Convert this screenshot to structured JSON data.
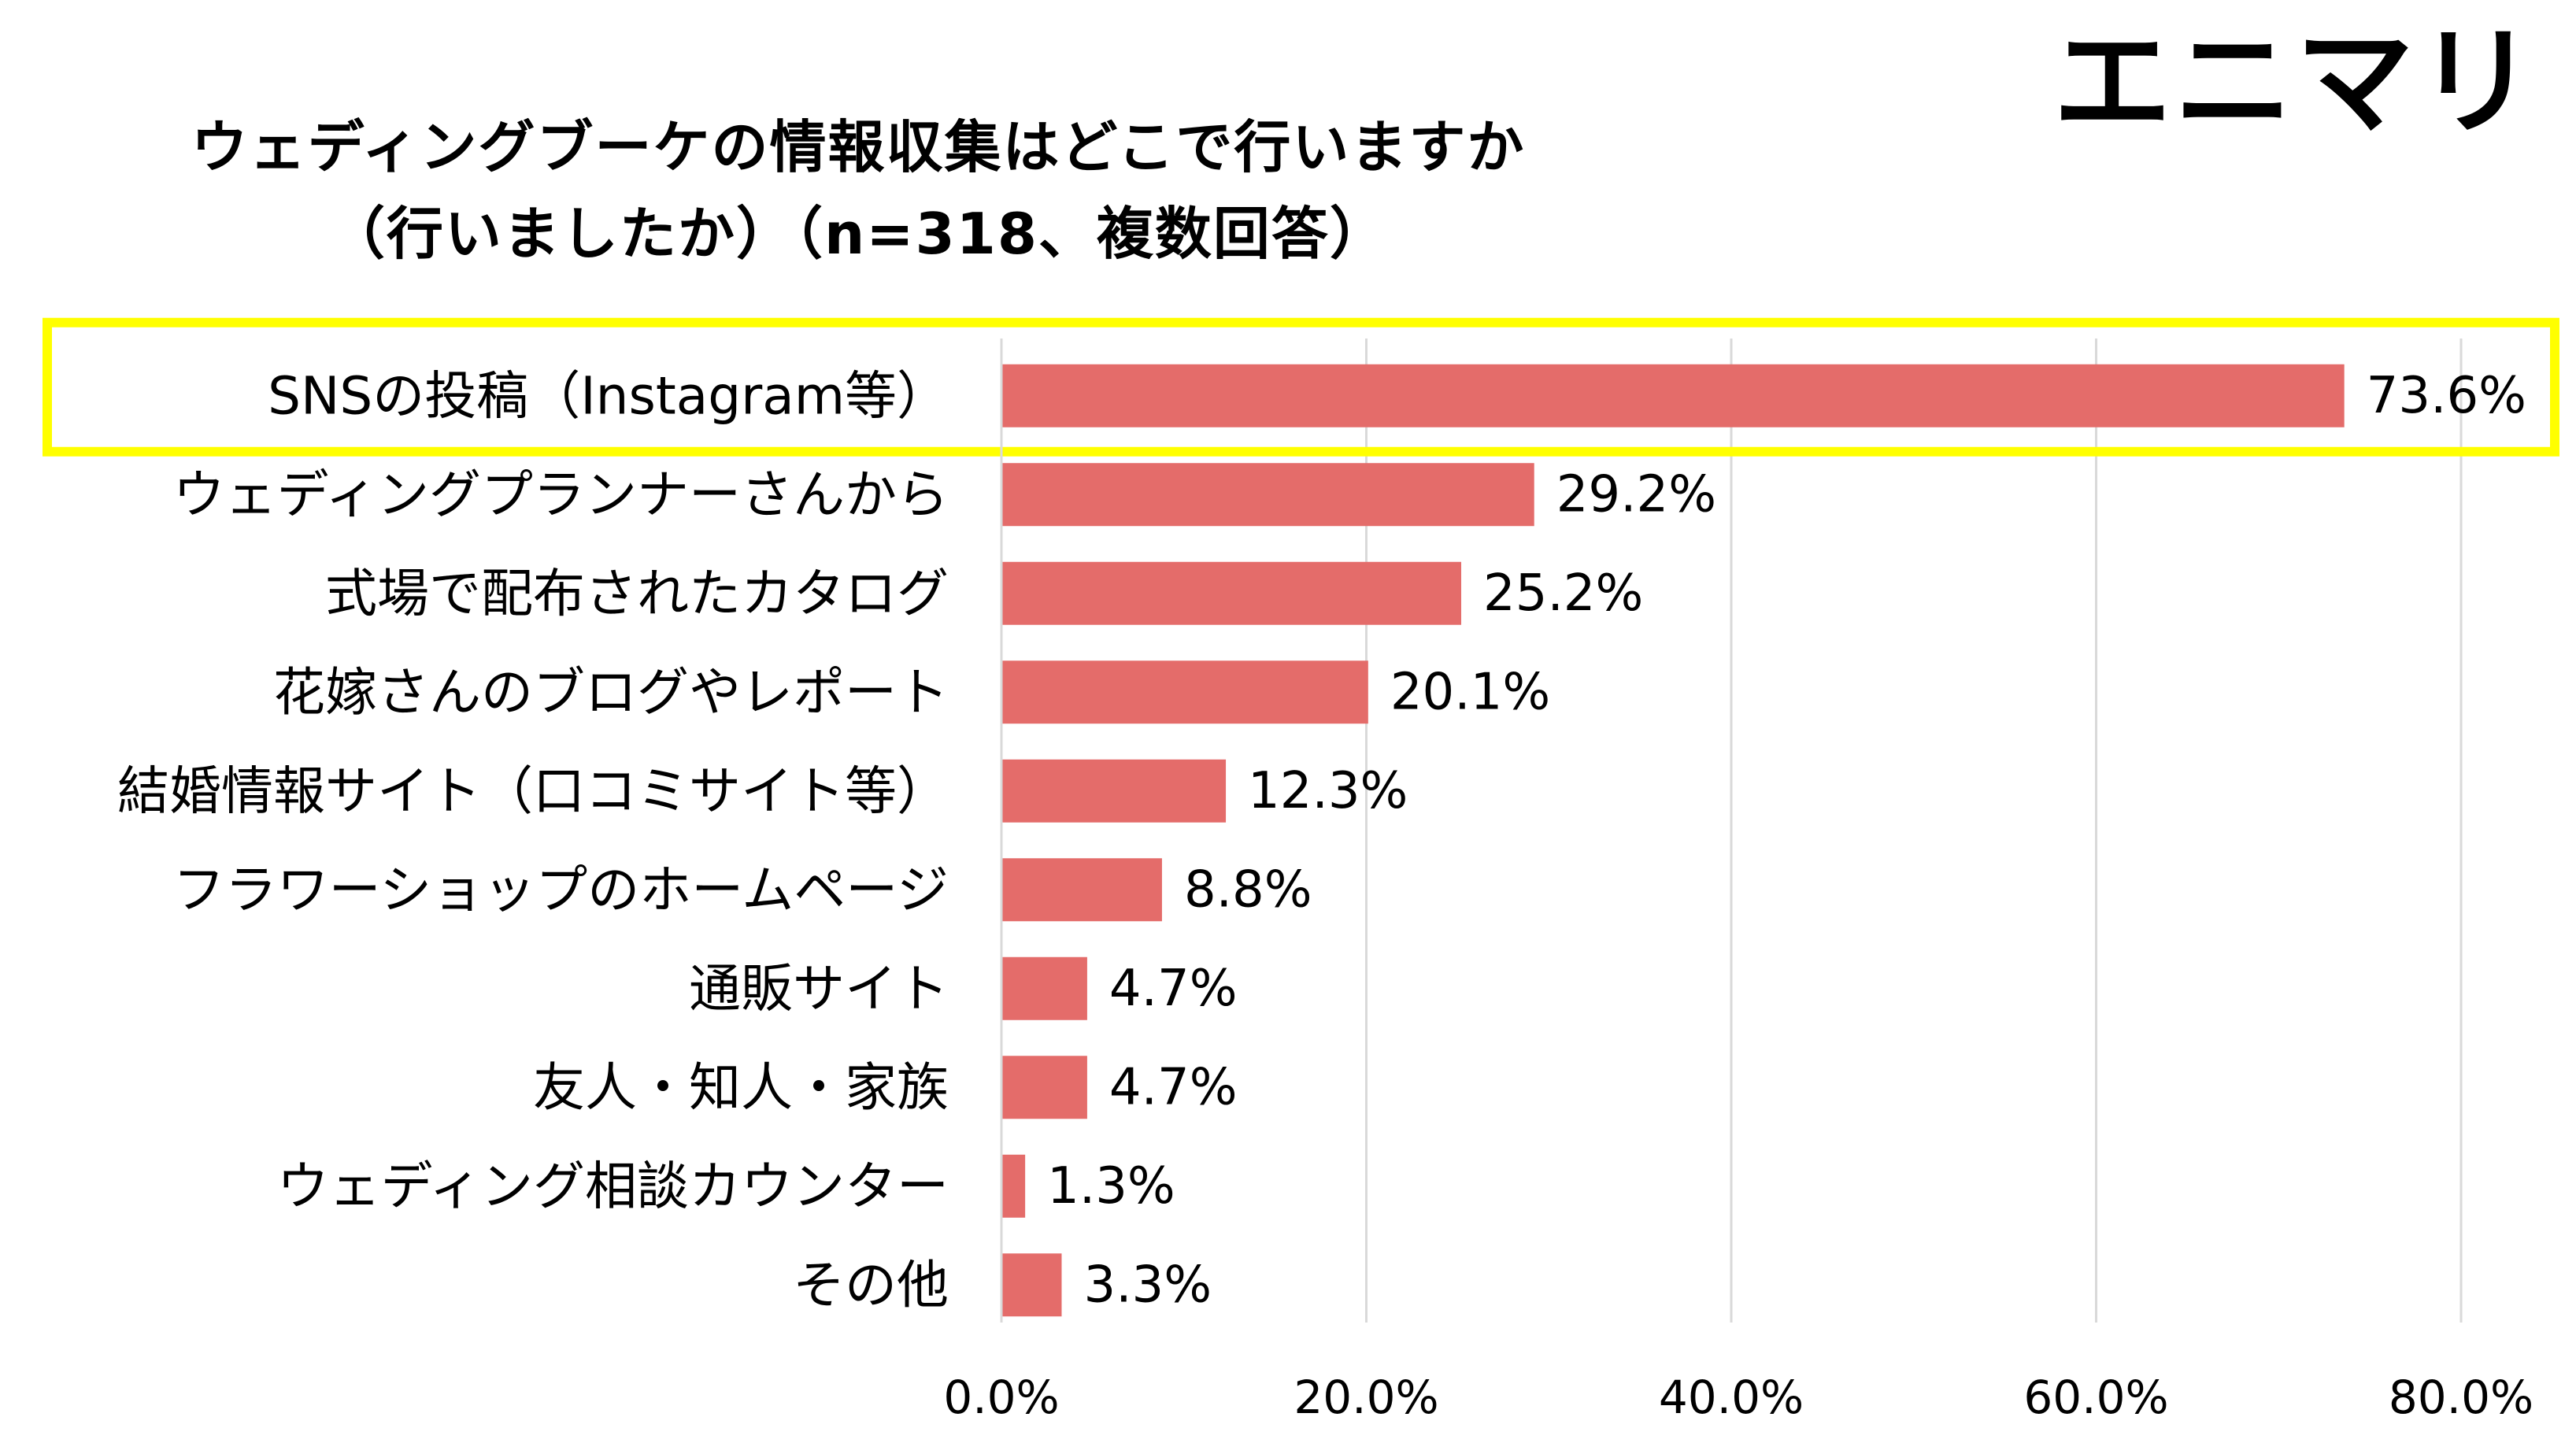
{
  "title": {
    "line1": "ウェディングブーケの情報収集はどこで行いますか",
    "line2": "（行いましたか）（n=318、複数回答）"
  },
  "brand": "エニマリ",
  "colors": {
    "bar": "#E46C6A",
    "highlight": "#FFFF00",
    "grid": "#D9D9D9",
    "text": "#000000"
  },
  "chart_data": {
    "type": "bar",
    "orientation": "horizontal",
    "categories": [
      "SNSの投稿（Instagram等）",
      "ウェディングプランナーさんから",
      "式場で配布されたカタログ",
      "花嫁さんのブログやレポート",
      "結婚情報サイト（口コミサイト等）",
      "フラワーショップのホームページ",
      "通販サイト",
      "友人・知人・家族",
      "ウェディング相談カウンター",
      "その他"
    ],
    "values": [
      73.6,
      29.2,
      25.2,
      20.1,
      12.3,
      8.8,
      4.7,
      4.7,
      1.3,
      3.3
    ],
    "value_labels": [
      "73.6%",
      "29.2%",
      "25.2%",
      "20.1%",
      "12.3%",
      "8.8%",
      "4.7%",
      "4.7%",
      "1.3%",
      "3.3%"
    ],
    "x_ticks": [
      0,
      20,
      40,
      60,
      80
    ],
    "x_tick_labels": [
      "0.0%",
      "20.0%",
      "40.0%",
      "60.0%",
      "80.0%"
    ],
    "xlim": [
      0,
      80
    ],
    "grid": true,
    "highlighted_category": "SNSの投稿（Instagram等）"
  }
}
